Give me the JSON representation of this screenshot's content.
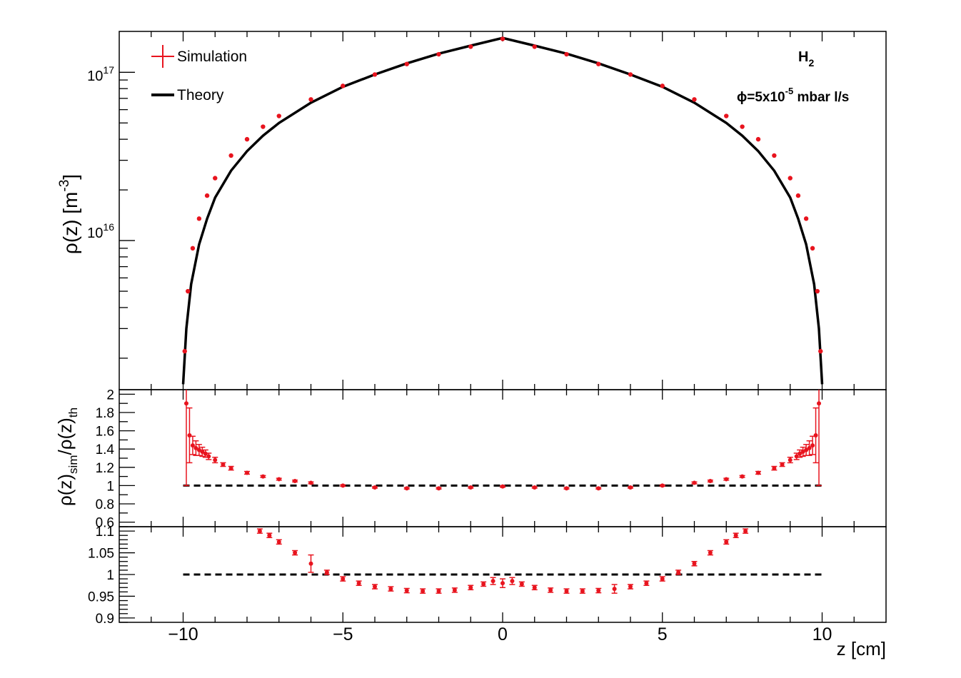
{
  "chart_data": [
    {
      "type": "line",
      "panel": "top",
      "yscale": "log",
      "xlim": [
        -12,
        12
      ],
      "ylim": [
        1300000000000000.0,
        1.75e+17
      ],
      "ylabel": "ρ(z) [m",
      "ylabel_sup": "-3",
      "ylabel_close": "]",
      "yticks": [
        {
          "value": 1e+16,
          "base": "10",
          "exp": "16"
        },
        {
          "value": 1e+17,
          "base": "10",
          "exp": "17"
        }
      ],
      "legend": {
        "placement": "top-left",
        "simulation": "Simulation",
        "theory": "Theory"
      },
      "annotations": {
        "gas_main": "H",
        "gas_sub": "2",
        "flow_pre": "ϕ=5x10",
        "flow_sup": "-5",
        "flow_post": " mbar l/s"
      },
      "series": [
        {
          "name": "Simulation",
          "color": "#e8141e",
          "x": [
            -9.95,
            -9.85,
            -9.7,
            -9.5,
            -9.25,
            -9.0,
            -8.5,
            -8.0,
            -7.5,
            -7.0,
            -6.0,
            -5.0,
            -4.0,
            -3.0,
            -2.0,
            -1.0,
            0.0,
            1.0,
            2.0,
            3.0,
            4.0,
            5.0,
            6.0,
            7.0,
            7.5,
            8.0,
            8.5,
            9.0,
            9.25,
            9.5,
            9.7,
            9.85,
            9.95
          ],
          "y": [
            2200000000000000.0,
            5000000000000000.0,
            9000000000000000.0,
            1.35e+16,
            1.85e+16,
            2.35e+16,
            3.2e+16,
            4e+16,
            4.75e+16,
            5.5e+16,
            6.9e+16,
            8.3e+16,
            9.7e+16,
            1.12e+17,
            1.28e+17,
            1.42e+17,
            1.58e+17,
            1.42e+17,
            1.28e+17,
            1.12e+17,
            9.7e+16,
            8.3e+16,
            6.9e+16,
            5.5e+16,
            4.75e+16,
            4e+16,
            3.2e+16,
            2.35e+16,
            1.85e+16,
            1.35e+16,
            9000000000000000.0,
            5000000000000000.0,
            2200000000000000.0
          ]
        },
        {
          "name": "Theory",
          "color": "#000000",
          "x": [
            -10.0,
            -9.9,
            -9.75,
            -9.5,
            -9.25,
            -9.0,
            -8.5,
            -8.0,
            -7.5,
            -7.0,
            -6.0,
            -5.0,
            -4.0,
            -3.0,
            -2.0,
            -1.0,
            0.0,
            1.0,
            2.0,
            3.0,
            4.0,
            5.0,
            6.0,
            7.0,
            7.5,
            8.0,
            8.5,
            9.0,
            9.25,
            9.5,
            9.75,
            9.9,
            10.0
          ],
          "y": [
            1400000000000000.0,
            3000000000000000.0,
            5500000000000000.0,
            9500000000000000.0,
            1.35e+16,
            1.8e+16,
            2.6e+16,
            3.4e+16,
            4.2e+16,
            5e+16,
            6.6e+16,
            8.2e+16,
            9.7e+16,
            1.13e+17,
            1.29e+17,
            1.44e+17,
            1.6e+17,
            1.44e+17,
            1.29e+17,
            1.13e+17,
            9.7e+16,
            8.2e+16,
            6.6e+16,
            5e+16,
            4.2e+16,
            3.4e+16,
            2.6e+16,
            1.8e+16,
            1.35e+16,
            9500000000000000.0,
            5500000000000000.0,
            3000000000000000.0,
            1400000000000000.0
          ]
        }
      ]
    },
    {
      "type": "scatter",
      "panel": "middle",
      "xlim": [
        -12,
        12
      ],
      "ylim": [
        0.55,
        2.05
      ],
      "ylabel_parts": [
        "ρ(z)",
        "sim",
        "/ρ(z)",
        "th"
      ],
      "ytick_values": [
        0.6,
        0.8,
        1,
        1.2,
        1.4,
        1.6,
        1.8,
        2
      ],
      "ytick_labels": [
        "0.6",
        "0.8",
        "1",
        "1.2",
        "1.4",
        "1.6",
        "1.8",
        "2"
      ],
      "reference_line": {
        "y": 1,
        "x": [
          -10,
          10
        ],
        "style": "dashed"
      },
      "series": [
        {
          "name": "",
          "color": "#e8141e",
          "x": [
            -9.9,
            -9.8,
            -9.7,
            -9.6,
            -9.5,
            -9.4,
            -9.3,
            -9.2,
            -9.0,
            -8.75,
            -8.5,
            -8.0,
            -7.5,
            -7.0,
            -6.5,
            -6.0,
            -5.0,
            -4.0,
            -3.0,
            -2.0,
            -1.0,
            0.0,
            1.0,
            2.0,
            3.0,
            4.0,
            5.0,
            6.0,
            6.5,
            7.0,
            7.5,
            8.0,
            8.5,
            8.75,
            9.0,
            9.2,
            9.3,
            9.4,
            9.5,
            9.6,
            9.7,
            9.8,
            9.9
          ],
          "y": [
            1.9,
            1.55,
            1.44,
            1.41,
            1.39,
            1.37,
            1.35,
            1.32,
            1.28,
            1.23,
            1.19,
            1.14,
            1.1,
            1.07,
            1.05,
            1.03,
            1.0,
            0.98,
            0.97,
            0.97,
            0.98,
            0.99,
            0.98,
            0.97,
            0.97,
            0.98,
            1.0,
            1.03,
            1.05,
            1.07,
            1.1,
            1.14,
            1.19,
            1.23,
            1.28,
            1.32,
            1.35,
            1.37,
            1.39,
            1.41,
            1.44,
            1.55,
            1.9
          ],
          "err": [
            0.9,
            0.3,
            0.1,
            0.08,
            0.06,
            0.05,
            0.04,
            0.035,
            0.03,
            0.02,
            0.02,
            0.015,
            0.01,
            0.01,
            0.01,
            0.01,
            0.008,
            0.008,
            0.008,
            0.008,
            0.008,
            0.008,
            0.008,
            0.008,
            0.008,
            0.008,
            0.008,
            0.01,
            0.01,
            0.01,
            0.01,
            0.015,
            0.02,
            0.02,
            0.03,
            0.035,
            0.04,
            0.05,
            0.06,
            0.08,
            0.1,
            0.3,
            0.9
          ]
        }
      ]
    },
    {
      "type": "scatter",
      "panel": "bottom",
      "xlim": [
        -12,
        12
      ],
      "ylim": [
        0.89,
        1.11
      ],
      "xlabel": "z [cm]",
      "ytick_values": [
        0.9,
        0.95,
        1,
        1.05,
        1.1
      ],
      "ytick_labels": [
        "0.9",
        "0.95",
        "1",
        "1.05",
        "1.1"
      ],
      "xtick_values": [
        -10,
        -5,
        0,
        5,
        10
      ],
      "xtick_labels": [
        "−10",
        "−5",
        "0",
        "5",
        "10"
      ],
      "reference_line": {
        "y": 1,
        "x": [
          -10,
          10
        ],
        "style": "dashed"
      },
      "series": [
        {
          "name": "",
          "color": "#e8141e",
          "x": [
            -7.6,
            -7.3,
            -7.0,
            -6.5,
            -6.0,
            -5.5,
            -5.0,
            -4.5,
            -4.0,
            -3.5,
            -3.0,
            -2.5,
            -2.0,
            -1.5,
            -1.0,
            -0.6,
            -0.3,
            0.0,
            0.3,
            0.6,
            1.0,
            1.5,
            2.0,
            2.5,
            3.0,
            3.5,
            4.0,
            4.5,
            5.0,
            5.5,
            6.0,
            6.5,
            7.0,
            7.3,
            7.6
          ],
          "y": [
            1.1,
            1.09,
            1.075,
            1.05,
            1.025,
            1.005,
            0.99,
            0.98,
            0.972,
            0.967,
            0.963,
            0.962,
            0.962,
            0.964,
            0.97,
            0.978,
            0.985,
            0.98,
            0.985,
            0.978,
            0.97,
            0.964,
            0.962,
            0.962,
            0.963,
            0.967,
            0.972,
            0.98,
            0.99,
            1.005,
            1.025,
            1.05,
            1.075,
            1.09,
            1.1
          ],
          "err": [
            0.005,
            0.005,
            0.005,
            0.005,
            0.02,
            0.005,
            0.005,
            0.005,
            0.005,
            0.005,
            0.005,
            0.005,
            0.005,
            0.005,
            0.005,
            0.005,
            0.008,
            0.01,
            0.008,
            0.005,
            0.005,
            0.005,
            0.005,
            0.005,
            0.005,
            0.01,
            0.005,
            0.005,
            0.005,
            0.005,
            0.005,
            0.005,
            0.005,
            0.005,
            0.005
          ]
        }
      ]
    }
  ]
}
